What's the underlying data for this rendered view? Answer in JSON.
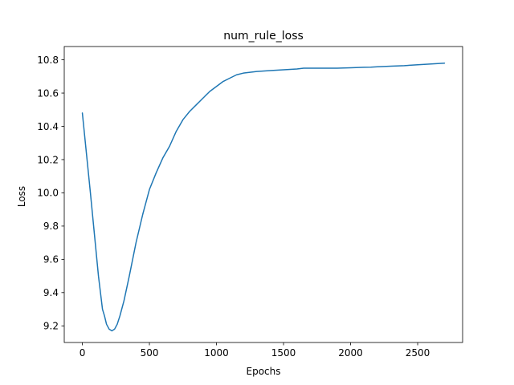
{
  "chart_data": {
    "type": "line",
    "title": "num_rule_loss",
    "xlabel": "Epochs",
    "ylabel": "Loss",
    "xlim": [
      -135,
      2835
    ],
    "ylim": [
      9.1,
      10.88
    ],
    "xticks": [
      0,
      500,
      1000,
      1500,
      2000,
      2500
    ],
    "xtick_labels": [
      "0",
      "500",
      "1000",
      "1500",
      "2000",
      "2500"
    ],
    "yticks": [
      9.2,
      9.4,
      9.6,
      9.8,
      10.0,
      10.2,
      10.4,
      10.6,
      10.8
    ],
    "ytick_labels": [
      "9.2",
      "9.4",
      "9.6",
      "9.8",
      "10.0",
      "10.2",
      "10.4",
      "10.6",
      "10.8"
    ],
    "grid": false,
    "legend": "none",
    "color": "#1f77b4",
    "series": [
      {
        "x": [
          0,
          30,
          60,
          90,
          120,
          150,
          165,
          180,
          200,
          220,
          240,
          260,
          280,
          310,
          350,
          400,
          450,
          500,
          550,
          600,
          650,
          700,
          750,
          800,
          850,
          900,
          950,
          1000,
          1050,
          1100,
          1150,
          1200,
          1300,
          1400,
          1500,
          1600,
          1650,
          1700,
          1800,
          1900,
          2000,
          2100,
          2150,
          2200,
          2300,
          2400,
          2500,
          2600,
          2700
        ],
        "y": [
          10.48,
          10.24,
          10.0,
          9.75,
          9.5,
          9.3,
          9.26,
          9.21,
          9.18,
          9.17,
          9.18,
          9.21,
          9.26,
          9.35,
          9.5,
          9.7,
          9.87,
          10.02,
          10.12,
          10.21,
          10.28,
          10.37,
          10.44,
          10.49,
          10.53,
          10.57,
          10.61,
          10.64,
          10.67,
          10.69,
          10.71,
          10.72,
          10.73,
          10.735,
          10.74,
          10.745,
          10.75,
          10.75,
          10.75,
          10.75,
          10.752,
          10.755,
          10.756,
          10.758,
          10.762,
          10.765,
          10.77,
          10.775,
          10.78
        ]
      }
    ]
  }
}
